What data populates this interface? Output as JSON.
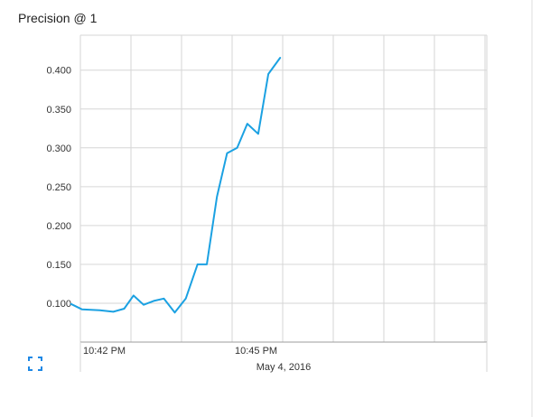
{
  "card": {
    "title": "Precision @ 1"
  },
  "colors": {
    "series": "#1ba1e2",
    "grid": "#d6d6d6",
    "axis_text": "#333333",
    "expand_icon": "#1e88e5"
  },
  "icons": {
    "expand": "expand-icon"
  },
  "chart_data": {
    "type": "line",
    "title": "Precision @ 1",
    "x_axis": {
      "kind": "time",
      "tick_labels": [
        "10:42 PM",
        "10:45 PM"
      ],
      "date_label": "May 4, 2016"
    },
    "y_axis": {
      "ticks": [
        0.1,
        0.15,
        0.2,
        0.25,
        0.3,
        0.35,
        0.4
      ],
      "tick_labels": [
        "0.100",
        "0.150",
        "0.200",
        "0.250",
        "0.300",
        "0.350",
        "0.400"
      ]
    },
    "ylim": [
      0.05,
      0.445
    ],
    "grid": true,
    "series": [
      {
        "points": [
          {
            "x": "10:41:49 PM",
            "y": 0.099
          },
          {
            "x": "10:42:02 PM",
            "y": 0.092
          },
          {
            "x": "10:42:23 PM",
            "y": 0.091
          },
          {
            "x": "10:42:39 PM",
            "y": 0.089
          },
          {
            "x": "10:42:52 PM",
            "y": 0.093
          },
          {
            "x": "10:43:03 PM",
            "y": 0.11
          },
          {
            "x": "10:43:15 PM",
            "y": 0.098
          },
          {
            "x": "10:43:27 PM",
            "y": 0.103
          },
          {
            "x": "10:43:39 PM",
            "y": 0.106
          },
          {
            "x": "10:43:52 PM",
            "y": 0.088
          },
          {
            "x": "10:44:05 PM",
            "y": 0.106
          },
          {
            "x": "10:44:19 PM",
            "y": 0.15
          },
          {
            "x": "10:44:30 PM",
            "y": 0.15
          },
          {
            "x": "10:44:42 PM",
            "y": 0.237
          },
          {
            "x": "10:44:54 PM",
            "y": 0.293
          },
          {
            "x": "10:45:06 PM",
            "y": 0.3
          },
          {
            "x": "10:45:18 PM",
            "y": 0.331
          },
          {
            "x": "10:45:31 PM",
            "y": 0.318
          },
          {
            "x": "10:45:43 PM",
            "y": 0.395
          },
          {
            "x": "10:45:57 PM",
            "y": 0.416
          }
        ]
      }
    ]
  }
}
